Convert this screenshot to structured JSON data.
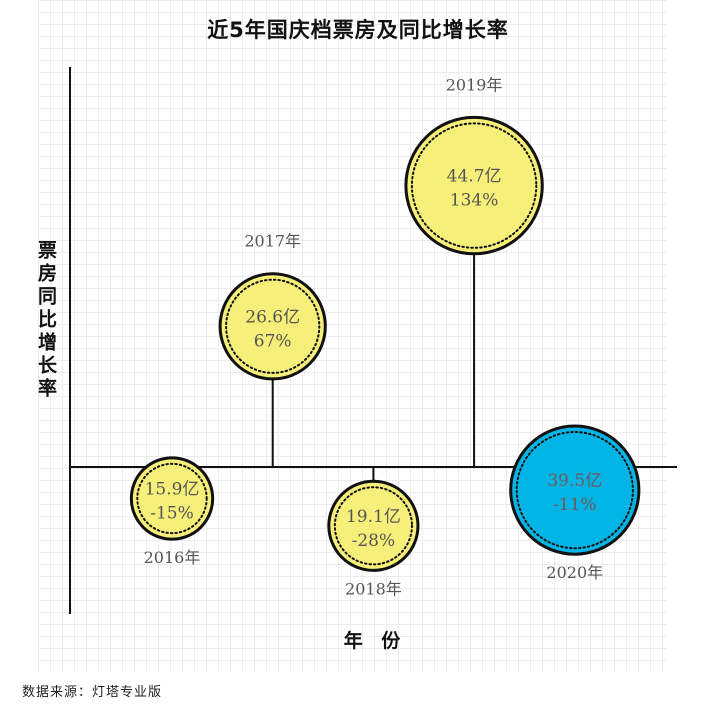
{
  "chart_data": {
    "type": "scatter",
    "title": "近5年国庆档票房及同比增长率",
    "xlabel": "年 份",
    "ylabel": "票房同比增长率",
    "categories": [
      "2016年",
      "2017年",
      "2018年",
      "2019年",
      "2020年"
    ],
    "series": [
      {
        "name": "票房",
        "values": [
          15.9,
          26.6,
          19.1,
          44.7,
          39.5
        ],
        "labels": [
          "15.9亿",
          "26.6亿",
          "19.1亿",
          "44.7亿",
          "39.5亿"
        ]
      },
      {
        "name": "同比增长率",
        "values": [
          -15,
          67,
          -28,
          134,
          -11
        ],
        "labels": [
          "-15%",
          "67%",
          "-28%",
          "134%",
          "-11%"
        ]
      }
    ],
    "colors": {
      "default": "#f6ef7a",
      "highlight": "#00b5e6",
      "highlight_index": 4
    },
    "grid": true
  },
  "source": "数据来源：灯塔专业版"
}
